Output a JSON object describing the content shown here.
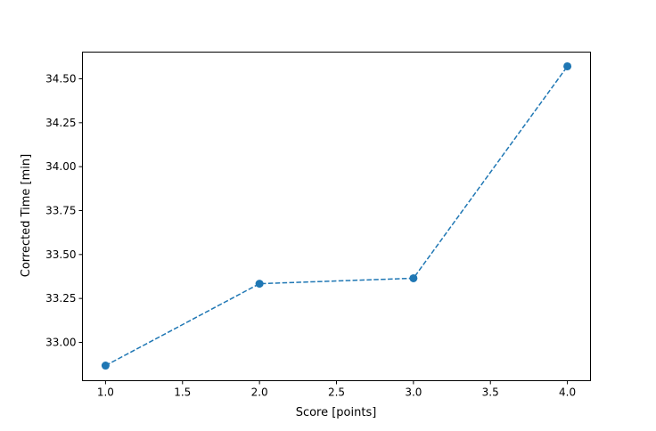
{
  "chart_data": {
    "type": "line",
    "title": "",
    "xlabel": "Score [points]",
    "ylabel": "Corrected Time [min]",
    "xlim": [
      0.85,
      4.15
    ],
    "ylim": [
      32.782,
      34.652
    ],
    "xticks": [
      1.0,
      1.5,
      2.0,
      2.5,
      3.0,
      3.5,
      4.0
    ],
    "xtick_labels": [
      "1.0",
      "1.5",
      "2.0",
      "2.5",
      "3.0",
      "3.5",
      "4.0"
    ],
    "yticks": [
      33.0,
      33.25,
      33.5,
      33.75,
      34.0,
      34.25,
      34.5
    ],
    "ytick_labels": [
      "33.00",
      "33.25",
      "33.50",
      "33.75",
      "34.00",
      "34.25",
      "34.50"
    ],
    "grid": false,
    "series": [
      {
        "x": [
          1.0,
          2.0,
          3.0,
          4.0
        ],
        "y": [
          32.868,
          33.334,
          33.365,
          34.571
        ],
        "color": "#1f77b4",
        "linestyle": "dashed",
        "marker": "circle"
      }
    ]
  }
}
